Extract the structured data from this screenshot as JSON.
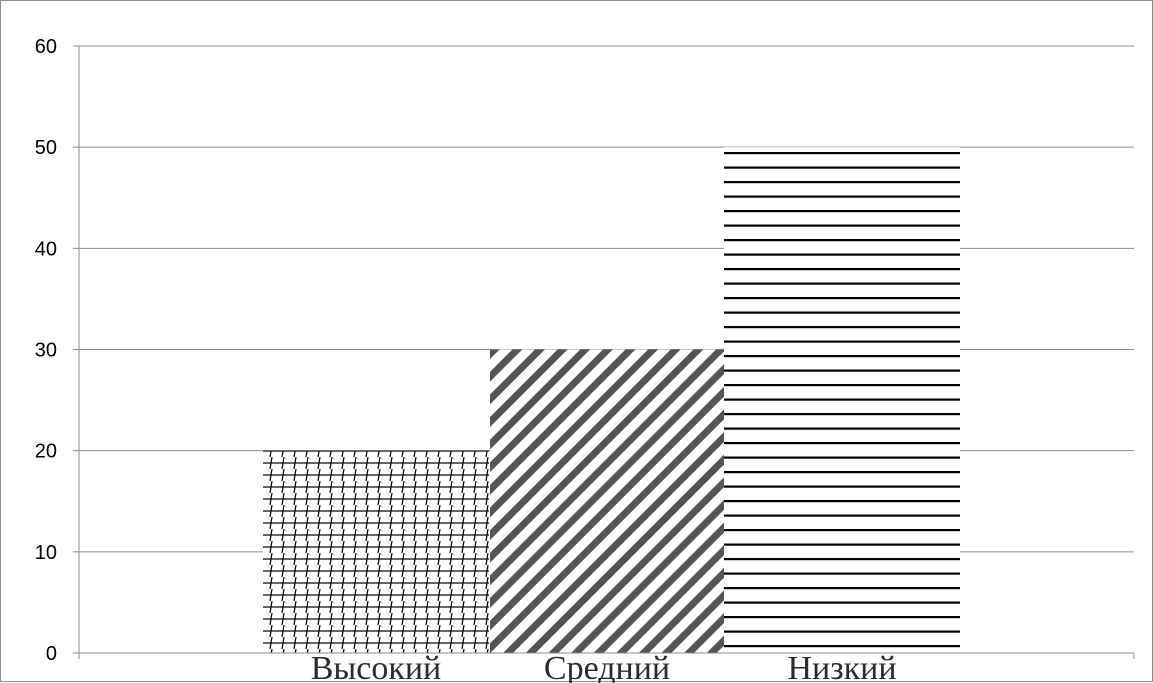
{
  "chart_data": {
    "type": "bar",
    "title": "",
    "xlabel": "",
    "ylabel": "",
    "categories": [
      "Высокий",
      "Средний",
      "Низкий"
    ],
    "values": [
      20,
      30,
      50
    ],
    "ylim": [
      0,
      60
    ],
    "yticks": [
      "0",
      "10",
      "20",
      "30",
      "40",
      "50",
      "60"
    ],
    "grid": true,
    "legend": "none",
    "fills": [
      "grid-hatch",
      "diagonal-stripes",
      "horizontal-stripes"
    ],
    "colors": {
      "gridline": "#8c8c8c",
      "hatch": "#000000",
      "stripe": "#555555",
      "background": "#ffffff"
    }
  }
}
